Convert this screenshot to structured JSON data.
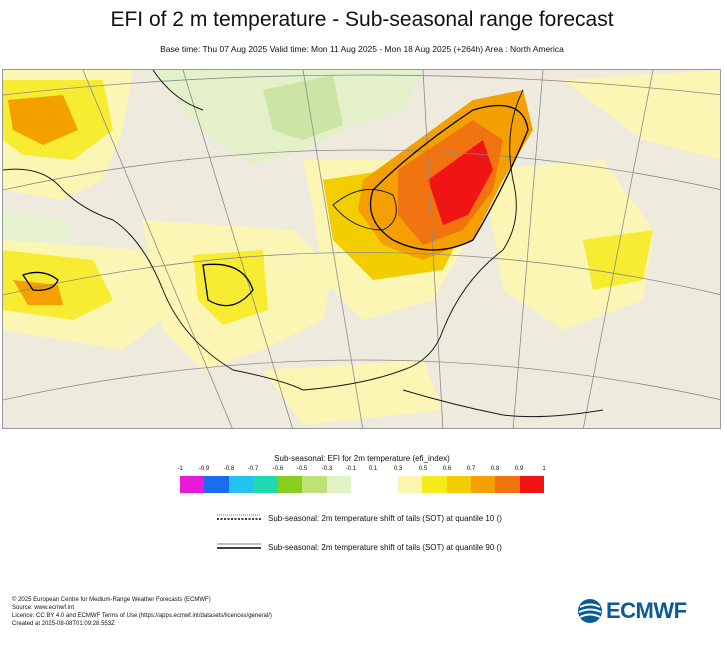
{
  "header": {
    "title": "EFI of 2 m temperature - Sub-seasonal range forecast",
    "subtitle": "Base time: Thu 07 Aug 2025 Valid time: Mon 11 Aug 2025 - Mon 18 Aug 2025 (+264h) Area : North America"
  },
  "legend": {
    "title": "Sub-seasonal: EFI for 2m temperature (efi_index)",
    "ticks": [
      "-1",
      "-0.9",
      "-0.8",
      "-0.7",
      "-0.6",
      "-0.5",
      "-0.3",
      "-0.1",
      "0.1",
      "0.3",
      "0.5",
      "0.6",
      "0.7",
      "0.8",
      "0.9",
      "1"
    ],
    "colors_negative": [
      "#e81ad8",
      "#1a6cf0",
      "#22c3f0",
      "#1fd9b0",
      "#86cf1e",
      "#bfe278",
      "#e1f2c6"
    ],
    "colors_positive": [
      "#fcf7b0",
      "#f6ea1a",
      "#f3cd00",
      "#f3a000",
      "#f27410",
      "#f01414"
    ],
    "sot_q10_label": "Sub-seasonal: 2m temperature shift of tails (SOT) at quantile 10 ()",
    "sot_q90_label": "Sub-seasonal: 2m temperature shift of tails (SOT) at quantile 90 ()"
  },
  "footer": {
    "line1": "© 2025 European Centre for Medium-Range Weather Forecasts (ECMWF)",
    "line2": "Source: www.ecmwf.int",
    "line3": "Licence: CC BY 4.0 and ECMWF Terms of Use (https://apps.ecmwf.int/datasets/licences/general/)",
    "line4": "Created at 2025-08-08T01:09:28.553Z"
  },
  "logo": {
    "text": "ECMWF",
    "color": "#0a5a96"
  }
}
